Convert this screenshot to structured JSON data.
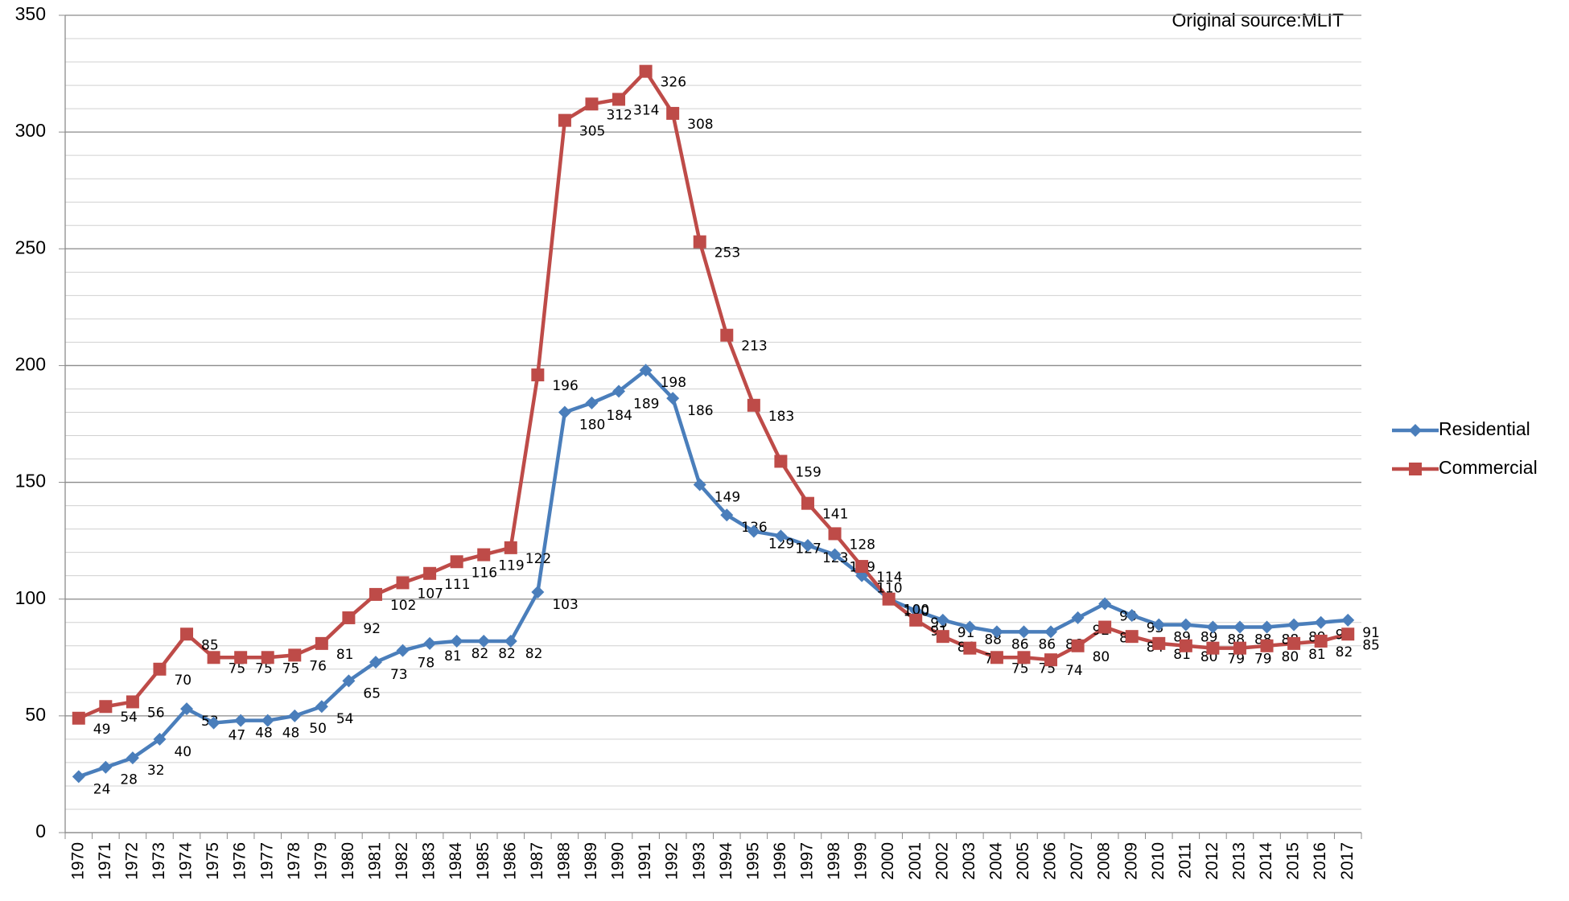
{
  "chart_data": {
    "type": "line",
    "annotation": "Original source:MLIT",
    "categories": [
      "1970",
      "1971",
      "1972",
      "1973",
      "1974",
      "1975",
      "1976",
      "1977",
      "1978",
      "1979",
      "1980",
      "1981",
      "1982",
      "1983",
      "1984",
      "1985",
      "1986",
      "1987",
      "1988",
      "1989",
      "1990",
      "1991",
      "1992",
      "1993",
      "1994",
      "1995",
      "1996",
      "1997",
      "1998",
      "1999",
      "2000",
      "2001",
      "2002",
      "2003",
      "2004",
      "2005",
      "2006",
      "2007",
      "2008",
      "2009",
      "2010",
      "2011",
      "2012",
      "2013",
      "2014",
      "2015",
      "2016",
      "2017"
    ],
    "series": [
      {
        "name": "Residential",
        "color": "#4a7ebb",
        "marker": "diamond",
        "values": [
          24,
          28,
          32,
          40,
          53,
          47,
          48,
          48,
          50,
          54,
          65,
          73,
          78,
          81,
          82,
          82,
          82,
          103,
          180,
          184,
          189,
          198,
          186,
          149,
          136,
          129,
          127,
          123,
          119,
          110,
          100,
          95,
          91,
          88,
          86,
          86,
          86,
          92,
          98,
          93,
          89,
          89,
          88,
          88,
          88,
          89,
          90,
          91
        ]
      },
      {
        "name": "Commercial",
        "color": "#be4b48",
        "marker": "square",
        "values": [
          49,
          54,
          56,
          70,
          85,
          75,
          75,
          75,
          76,
          81,
          92,
          102,
          107,
          111,
          116,
          119,
          122,
          196,
          305,
          312,
          314,
          326,
          308,
          253,
          213,
          183,
          159,
          141,
          128,
          114,
          100,
          91,
          84,
          79,
          75,
          75,
          74,
          80,
          88,
          84,
          81,
          80,
          79,
          79,
          80,
          81,
          82,
          85
        ]
      }
    ],
    "ylim": [
      0,
      350
    ],
    "yticks": [
      0,
      50,
      100,
      150,
      200,
      250,
      300,
      350
    ],
    "minor_step": 10,
    "grid": true,
    "legend": "right"
  }
}
